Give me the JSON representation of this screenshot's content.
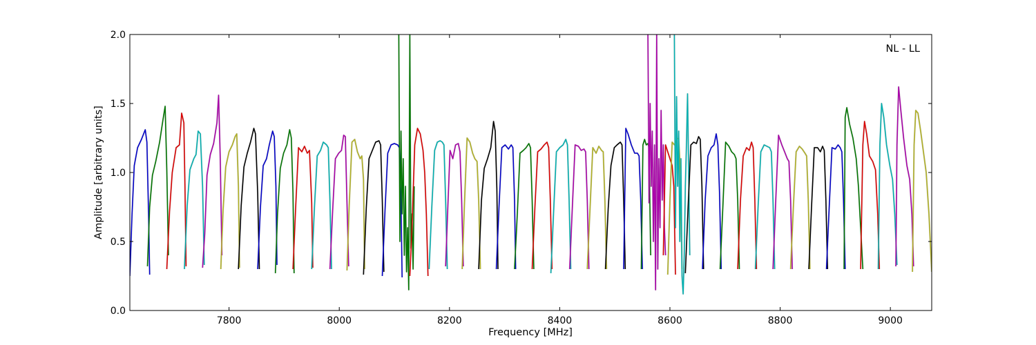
{
  "chart_data": {
    "type": "line",
    "title": "",
    "annotation": "NL - LL",
    "xlabel": "Frequency [MHz]",
    "ylabel": "Amplitude [arbitrary units]",
    "xlim": [
      7620,
      9075
    ],
    "ylim": [
      0.0,
      2.0
    ],
    "xticks": [
      7800,
      8000,
      8200,
      8400,
      8600,
      8800,
      9000
    ],
    "yticks": [
      0.0,
      0.5,
      1.0,
      1.5,
      2.0
    ],
    "xtick_labels": [
      "7800",
      "8000",
      "8200",
      "8400",
      "8600",
      "8800",
      "9000"
    ],
    "ytick_labels": [
      "0.0",
      "0.5",
      "1.0",
      "1.5",
      "2.0"
    ],
    "grid": false,
    "legend": "none",
    "color_cycle": [
      "#0000cc",
      "#007700",
      "#dd0000",
      "#00b2b2",
      "#aa00aa",
      "#b2b222",
      "#000000"
    ],
    "shadow_color": "#bfbfbf",
    "series": [
      {
        "color": "#0000cc",
        "x": [
          7620,
          7624,
          7628,
          7634,
          7641,
          7648,
          7651,
          7654,
          7656
        ],
        "y": [
          0.25,
          0.7,
          1.05,
          1.18,
          1.24,
          1.31,
          1.22,
          0.7,
          0.26
        ]
      },
      {
        "color": "#007700",
        "x": [
          7652,
          7656,
          7661,
          7667,
          7674,
          7680,
          7684,
          7687,
          7690
        ],
        "y": [
          0.32,
          0.75,
          0.98,
          1.08,
          1.22,
          1.38,
          1.48,
          1.02,
          0.4
        ]
      },
      {
        "color": "#dd0000",
        "x": [
          7687,
          7692,
          7697,
          7704,
          7710,
          7714,
          7718,
          7720,
          7722
        ],
        "y": [
          0.3,
          0.72,
          1.0,
          1.18,
          1.2,
          1.43,
          1.36,
          0.9,
          0.32
        ]
      },
      {
        "color": "#00b2b2",
        "x": [
          7719,
          7724,
          7729,
          7736,
          7740,
          7744,
          7748,
          7752,
          7755
        ],
        "y": [
          0.3,
          0.76,
          1.02,
          1.1,
          1.13,
          1.3,
          1.28,
          0.9,
          0.33
        ]
      },
      {
        "color": "#aa00aa",
        "x": [
          7752,
          7756,
          7760,
          7766,
          7772,
          7778,
          7781,
          7784,
          7787
        ],
        "y": [
          0.31,
          0.56,
          0.98,
          1.13,
          1.21,
          1.36,
          1.56,
          1.1,
          0.4
        ]
      },
      {
        "color": "#b2b222",
        "x": [
          7785,
          7789,
          7794,
          7800,
          7806,
          7811,
          7814,
          7817,
          7819
        ],
        "y": [
          0.3,
          0.72,
          1.04,
          1.15,
          1.2,
          1.26,
          1.28,
          0.9,
          0.31
        ]
      },
      {
        "color": "#000000",
        "x": [
          7817,
          7822,
          7827,
          7833,
          7839,
          7845,
          7848,
          7852,
          7855
        ],
        "y": [
          0.3,
          0.76,
          1.04,
          1.14,
          1.22,
          1.32,
          1.28,
          0.85,
          0.3
        ]
      },
      {
        "color": "#0000cc",
        "x": [
          7852,
          7857,
          7862,
          7868,
          7873,
          7879,
          7882,
          7885,
          7887
        ],
        "y": [
          0.3,
          0.75,
          1.05,
          1.1,
          1.2,
          1.3,
          1.26,
          0.9,
          0.33
        ]
      },
      {
        "color": "#007700",
        "x": [
          7884,
          7888,
          7893,
          7899,
          7905,
          7910,
          7913,
          7916,
          7918
        ],
        "y": [
          0.27,
          0.7,
          1.03,
          1.14,
          1.2,
          1.31,
          1.25,
          0.85,
          0.27
        ]
      },
      {
        "color": "#dd0000",
        "x": [
          7916,
          7921,
          7926,
          7932,
          7937,
          7942,
          7946,
          7950,
          7952
        ],
        "y": [
          0.3,
          0.76,
          1.18,
          1.15,
          1.19,
          1.14,
          1.16,
          0.78,
          0.31
        ]
      },
      {
        "color": "#00b2b2",
        "x": [
          7950,
          7955,
          7960,
          7966,
          7971,
          7977,
          7980,
          7983,
          7986
        ],
        "y": [
          0.3,
          0.75,
          1.12,
          1.16,
          1.22,
          1.2,
          1.18,
          0.8,
          0.3
        ]
      },
      {
        "color": "#aa00aa",
        "x": [
          7983,
          7988,
          7993,
          7999,
          8004,
          8008,
          8011,
          8014,
          8017
        ],
        "y": [
          0.3,
          0.72,
          1.1,
          1.14,
          1.16,
          1.27,
          1.26,
          0.78,
          0.32
        ]
      },
      {
        "color": "#b2b222",
        "x": [
          8014,
          8018,
          8023,
          8028,
          8033,
          8038,
          8041,
          8044,
          8046
        ],
        "y": [
          0.29,
          0.76,
          1.22,
          1.24,
          1.15,
          1.1,
          1.12,
          0.95,
          0.3
        ]
      },
      {
        "color": "#000000",
        "x": [
          8044,
          8049,
          8054,
          8060,
          8066,
          8072,
          8075,
          8078,
          8081
        ],
        "y": [
          0.26,
          0.74,
          1.1,
          1.16,
          1.22,
          1.23,
          1.2,
          0.8,
          0.28
        ]
      },
      {
        "color": "#0000cc",
        "x": [
          8078,
          8083,
          8088,
          8094,
          8100,
          8106,
          8109,
          8112,
          8114
        ],
        "y": [
          0.25,
          0.72,
          1.14,
          1.2,
          1.21,
          1.2,
          1.18,
          0.8,
          0.24
        ]
      },
      {
        "color": "#007700",
        "x": [
          8108,
          8110,
          8112,
          8114,
          8116,
          8118,
          8120,
          8122,
          8124,
          8126,
          8128,
          8130,
          8132,
          8134,
          8136
        ],
        "y": [
          2.0,
          0.5,
          1.3,
          0.7,
          1.1,
          0.4,
          0.9,
          0.28,
          0.6,
          0.15,
          2.0,
          0.45,
          0.7,
          0.3,
          0.9
        ]
      },
      {
        "color": "#dd0000",
        "x": [
          8128,
          8132,
          8137,
          8142,
          8147,
          8152,
          8155,
          8158,
          8161
        ],
        "y": [
          0.25,
          0.6,
          1.2,
          1.32,
          1.28,
          1.16,
          1.0,
          0.7,
          0.25
        ]
      },
      {
        "color": "#00b2b2",
        "x": [
          8163,
          8168,
          8173,
          8178,
          8183,
          8187,
          8190,
          8193,
          8196
        ],
        "y": [
          0.3,
          0.76,
          1.16,
          1.22,
          1.23,
          1.22,
          1.2,
          0.8,
          0.3
        ]
      },
      {
        "color": "#aa00aa",
        "x": [
          8193,
          8197,
          8201,
          8206,
          8211,
          8216,
          8219,
          8222,
          8225
        ],
        "y": [
          0.32,
          0.75,
          1.16,
          1.1,
          1.2,
          1.21,
          1.15,
          0.8,
          0.32
        ]
      },
      {
        "color": "#b2b222",
        "x": [
          8223,
          8227,
          8232,
          8237,
          8242,
          8246,
          8250,
          8253,
          8256
        ],
        "y": [
          0.3,
          0.75,
          1.25,
          1.22,
          1.14,
          1.1,
          1.08,
          0.8,
          0.3
        ]
      },
      {
        "color": "#000000",
        "x": [
          8253,
          8258,
          8263,
          8269,
          8275,
          8280,
          8283,
          8286,
          8288
        ],
        "y": [
          0.3,
          0.8,
          1.03,
          1.1,
          1.18,
          1.37,
          1.3,
          0.88,
          0.3
        ]
      },
      {
        "color": "#0000cc",
        "x": [
          8285,
          8290,
          8295,
          8301,
          8307,
          8312,
          8315,
          8318,
          8320
        ],
        "y": [
          0.3,
          0.76,
          1.18,
          1.2,
          1.17,
          1.2,
          1.18,
          0.8,
          0.3
        ]
      },
      {
        "color": "#007700",
        "x": [
          8318,
          8323,
          8328,
          8334,
          8339,
          8344,
          8347,
          8350,
          8353
        ],
        "y": [
          0.3,
          0.7,
          1.14,
          1.16,
          1.18,
          1.21,
          1.18,
          0.8,
          0.3
        ]
      },
      {
        "color": "#dd0000",
        "x": [
          8350,
          8355,
          8360,
          8366,
          8372,
          8377,
          8380,
          8383,
          8386
        ],
        "y": [
          0.3,
          0.75,
          1.15,
          1.17,
          1.2,
          1.22,
          1.18,
          0.8,
          0.3
        ]
      },
      {
        "color": "#00b2b2",
        "x": [
          8384,
          8389,
          8394,
          8400,
          8406,
          8411,
          8414,
          8417,
          8420
        ],
        "y": [
          0.27,
          0.72,
          1.15,
          1.18,
          1.2,
          1.24,
          1.2,
          0.8,
          0.3
        ]
      },
      {
        "color": "#aa00aa",
        "x": [
          8418,
          8423,
          8428,
          8434,
          8439,
          8444,
          8447,
          8450,
          8453
        ],
        "y": [
          0.3,
          0.75,
          1.2,
          1.19,
          1.16,
          1.17,
          1.15,
          0.8,
          0.3
        ]
      },
      {
        "color": "#b2b222",
        "x": [
          8450,
          8455,
          8460,
          8466,
          8471,
          8476,
          8479,
          8482,
          8485
        ],
        "y": [
          0.3,
          0.74,
          1.18,
          1.14,
          1.19,
          1.16,
          1.15,
          0.8,
          0.3
        ]
      },
      {
        "color": "#000000",
        "x": [
          8483,
          8488,
          8493,
          8499,
          8504,
          8510,
          8513,
          8516,
          8519
        ],
        "y": [
          0.3,
          0.74,
          1.05,
          1.18,
          1.2,
          1.22,
          1.2,
          0.8,
          0.3
        ]
      },
      {
        "color": "#0000cc",
        "x": [
          8516,
          8520,
          8524,
          8530,
          8536,
          8541,
          8544,
          8547,
          8550
        ],
        "y": [
          0.3,
          1.32,
          1.28,
          1.2,
          1.14,
          1.14,
          1.12,
          0.8,
          0.3
        ]
      },
      {
        "color": "#007700",
        "x": [
          8548,
          8551,
          8554,
          8557,
          8560,
          8562,
          8565
        ],
        "y": [
          0.3,
          1.2,
          1.24,
          1.2,
          1.21,
          1.18,
          0.4
        ]
      },
      {
        "color": "#aa00aa",
        "x": [
          8560,
          8562,
          8564,
          8566,
          8568,
          8570,
          8572,
          8574,
          8576,
          8578,
          8580,
          8582,
          8584,
          8586,
          8588,
          8590,
          8592
        ],
        "y": [
          2.0,
          0.78,
          1.5,
          0.9,
          1.3,
          0.5,
          1.2,
          0.15,
          2.0,
          0.3,
          1.1,
          0.6,
          1.45,
          0.8,
          1.2,
          0.6,
          0.4
        ]
      },
      {
        "color": "#dd0000",
        "x": [
          8588,
          8592,
          8596,
          8600,
          8604,
          8607,
          8610
        ],
        "y": [
          0.4,
          1.2,
          1.15,
          1.1,
          1.05,
          0.9,
          0.26
        ]
      },
      {
        "color": "#b2b222",
        "x": [
          8596,
          8600,
          8604,
          8608,
          8612,
          8616,
          8619,
          8622
        ],
        "y": [
          0.26,
          0.8,
          1.22,
          1.2,
          1.24,
          1.25,
          1.0,
          0.3
        ]
      },
      {
        "color": "#00b2b2",
        "x": [
          8608,
          8610,
          8612,
          8614,
          8616,
          8618,
          8620,
          8622,
          8624,
          8626,
          8628,
          8630,
          8632,
          8634,
          8636
        ],
        "y": [
          2.0,
          0.6,
          1.55,
          0.9,
          1.3,
          0.5,
          1.1,
          0.25,
          0.12,
          0.4,
          0.9,
          1.2,
          1.57,
          1.0,
          0.4
        ]
      },
      {
        "color": "#000000",
        "x": [
          8628,
          8633,
          8638,
          8643,
          8648,
          8652,
          8655,
          8658,
          8661
        ],
        "y": [
          0.27,
          0.75,
          1.2,
          1.22,
          1.21,
          1.26,
          1.24,
          0.9,
          0.3
        ]
      },
      {
        "color": "#0000cc",
        "x": [
          8659,
          8664,
          8669,
          8675,
          8680,
          8684,
          8687,
          8690,
          8693
        ],
        "y": [
          0.3,
          0.8,
          1.12,
          1.18,
          1.2,
          1.28,
          1.2,
          0.85,
          0.3
        ]
      },
      {
        "color": "#007700",
        "x": [
          8691,
          8696,
          8701,
          8707,
          8712,
          8717,
          8720,
          8723,
          8726
        ],
        "y": [
          0.3,
          0.75,
          1.22,
          1.19,
          1.15,
          1.13,
          1.1,
          0.8,
          0.3
        ]
      },
      {
        "color": "#dd0000",
        "x": [
          8723,
          8728,
          8733,
          8739,
          8744,
          8748,
          8751,
          8754,
          8757
        ],
        "y": [
          0.3,
          0.8,
          1.12,
          1.18,
          1.16,
          1.22,
          1.18,
          0.8,
          0.3
        ]
      },
      {
        "color": "#00b2b2",
        "x": [
          8755,
          8760,
          8765,
          8771,
          8776,
          8781,
          8784,
          8787,
          8790
        ],
        "y": [
          0.3,
          0.75,
          1.15,
          1.2,
          1.19,
          1.18,
          1.15,
          0.8,
          0.3
        ]
      },
      {
        "color": "#aa00aa",
        "x": [
          8787,
          8792,
          8797,
          8803,
          8808,
          8813,
          8816,
          8819,
          8822
        ],
        "y": [
          0.3,
          0.8,
          1.27,
          1.2,
          1.15,
          1.1,
          1.08,
          0.8,
          0.3
        ]
      },
      {
        "color": "#b2b222",
        "x": [
          8819,
          8824,
          8829,
          8835,
          8840,
          8845,
          8848,
          8851,
          8854
        ],
        "y": [
          0.3,
          0.75,
          1.15,
          1.19,
          1.17,
          1.14,
          1.12,
          0.8,
          0.3
        ]
      },
      {
        "color": "#000000",
        "x": [
          8852,
          8857,
          8862,
          8868,
          8873,
          8877,
          8880,
          8883,
          8886
        ],
        "y": [
          0.3,
          0.75,
          1.18,
          1.18,
          1.15,
          1.19,
          1.16,
          0.8,
          0.3
        ]
      },
      {
        "color": "#0000cc",
        "x": [
          8884,
          8889,
          8894,
          8900,
          8905,
          8909,
          8912,
          8915,
          8918
        ],
        "y": [
          0.3,
          0.75,
          1.18,
          1.17,
          1.2,
          1.18,
          1.15,
          0.8,
          0.3
        ]
      },
      {
        "color": "#007700",
        "x": [
          8916,
          8918,
          8921,
          8926,
          8932,
          8938,
          8942,
          8946,
          8950
        ],
        "y": [
          0.3,
          1.4,
          1.47,
          1.35,
          1.25,
          1.1,
          0.9,
          0.6,
          0.3
        ]
      },
      {
        "color": "#dd0000",
        "x": [
          8946,
          8950,
          8953,
          8957,
          8962,
          8968,
          8973,
          8977,
          8980
        ],
        "y": [
          0.3,
          1.2,
          1.37,
          1.28,
          1.12,
          1.08,
          1.02,
          0.7,
          0.3
        ]
      },
      {
        "color": "#00b2b2",
        "x": [
          8978,
          8981,
          8984,
          8988,
          8993,
          8999,
          9004,
          9008,
          9012
        ],
        "y": [
          0.3,
          1.2,
          1.5,
          1.4,
          1.2,
          1.05,
          0.95,
          0.7,
          0.33
        ]
      },
      {
        "color": "#aa00aa",
        "x": [
          9010,
          9012,
          9015,
          9019,
          9024,
          9030,
          9035,
          9039,
          9042
        ],
        "y": [
          0.32,
          1.2,
          1.62,
          1.45,
          1.25,
          1.05,
          0.95,
          0.7,
          0.32
        ]
      },
      {
        "color": "#b2b222",
        "x": [
          9040,
          9043,
          9046,
          9050,
          9055,
          9060,
          9065,
          9070,
          9075
        ],
        "y": [
          0.28,
          1.2,
          1.45,
          1.43,
          1.3,
          1.15,
          1.0,
          0.7,
          0.28
        ]
      }
    ]
  }
}
